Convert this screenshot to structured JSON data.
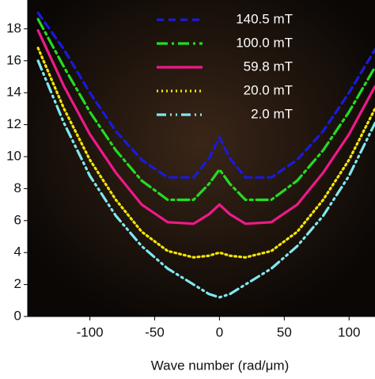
{
  "chart_data": {
    "type": "line",
    "xlabel": "Wave number (rad/μm)",
    "x": [
      -140,
      -120,
      -100,
      -80,
      -60,
      -40,
      -20,
      -8,
      0,
      8,
      20,
      40,
      60,
      80,
      100,
      120
    ],
    "series": [
      {
        "name": "140.5 mT",
        "color": "#1a1adc",
        "dash": "9,6",
        "values": [
          19.0,
          16.7,
          14.0,
          11.6,
          9.8,
          8.7,
          8.7,
          9.9,
          11.2,
          9.9,
          8.7,
          8.7,
          9.8,
          11.6,
          14.0,
          16.7
        ]
      },
      {
        "name": "100.0 mT",
        "color": "#22dd22",
        "dash": "14,5,3,5",
        "values": [
          18.6,
          15.6,
          12.8,
          10.4,
          8.5,
          7.3,
          7.3,
          8.3,
          9.2,
          8.3,
          7.3,
          7.3,
          8.5,
          10.4,
          12.8,
          15.6
        ]
      },
      {
        "name": "59.8 mT",
        "color": "#ee1a88",
        "dash": "none",
        "values": [
          17.9,
          14.4,
          11.4,
          9.0,
          7.0,
          5.9,
          5.8,
          6.4,
          7.0,
          6.4,
          5.8,
          5.9,
          7.0,
          9.0,
          11.4,
          14.4
        ]
      },
      {
        "name": "20.0 mT",
        "color": "#f2e600",
        "dash": "2,4",
        "values": [
          16.8,
          13.0,
          9.8,
          7.3,
          5.3,
          4.1,
          3.7,
          3.8,
          4.0,
          3.8,
          3.7,
          4.1,
          5.3,
          7.3,
          9.8,
          13.0
        ]
      },
      {
        "name": "2.0 mT",
        "color": "#7fe8f0",
        "dash": "12,5,2,5,2,5",
        "values": [
          16.0,
          12.1,
          8.8,
          6.3,
          4.4,
          3.0,
          2.0,
          1.4,
          1.2,
          1.4,
          2.0,
          3.0,
          4.4,
          6.3,
          8.8,
          12.1
        ]
      }
    ],
    "xlim": [
      -148,
      120
    ],
    "ylim": [
      0,
      19.8
    ],
    "xticks": [
      -100,
      -50,
      0,
      50,
      100
    ],
    "yticks": [
      0,
      2,
      4,
      6,
      8,
      10,
      12,
      14,
      16,
      18
    ],
    "legend": "top-right"
  }
}
